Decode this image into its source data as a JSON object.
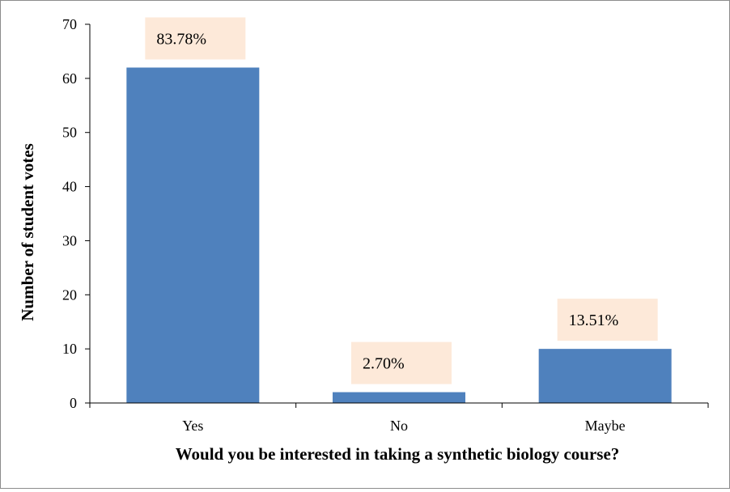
{
  "chart_data": {
    "type": "bar",
    "title": "",
    "xlabel": "Would you be interested in taking a synthetic biology course?",
    "ylabel": "Number of student votes",
    "categories": [
      "Yes",
      "No",
      "Maybe"
    ],
    "values": [
      62,
      2,
      10
    ],
    "data_labels": [
      "83.78%",
      "2.70%",
      "13.51%"
    ],
    "ylim": [
      0,
      70
    ],
    "yticks": [
      0,
      10,
      20,
      30,
      40,
      50,
      60,
      70
    ],
    "grid": false,
    "legend": "none",
    "bar_color": "#4f81bd",
    "label_bg_color": "#fde9d9"
  }
}
